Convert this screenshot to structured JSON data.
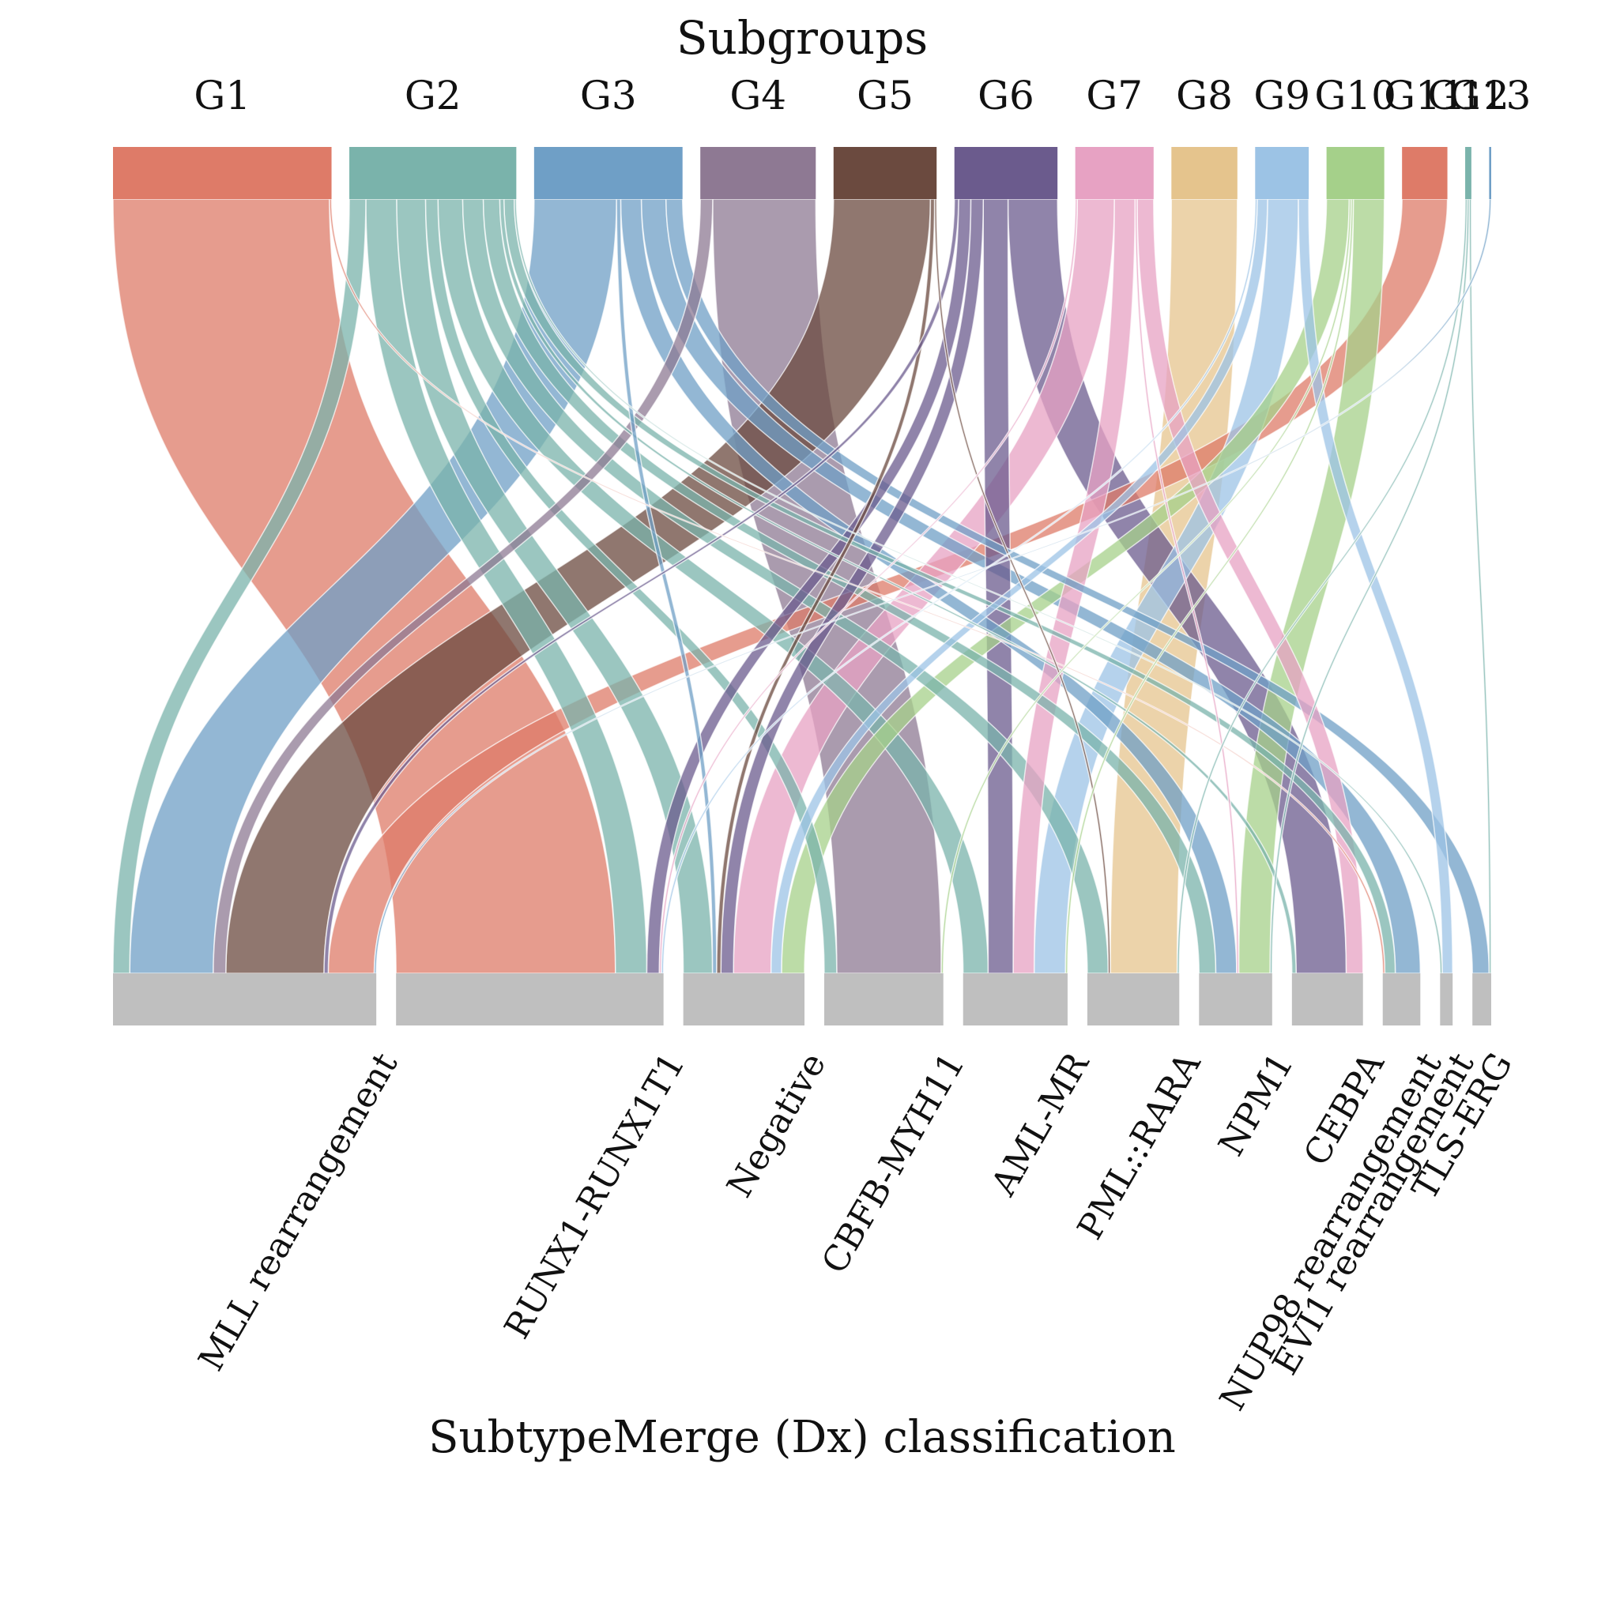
{
  "chart_data": {
    "type": "alluvial",
    "title": "Subgroups",
    "xlabel": "SubtypeMerge (Dx) classification",
    "top_nodes": [
      {
        "name": "G1",
        "color": "#de7b68"
      },
      {
        "name": "G2",
        "color": "#7ab3ab"
      },
      {
        "name": "G3",
        "color": "#6f9fc6"
      },
      {
        "name": "G4",
        "color": "#8e7993"
      },
      {
        "name": "G5",
        "color": "#6b4a3f"
      },
      {
        "name": "G6",
        "color": "#6b5b8d"
      },
      {
        "name": "G7",
        "color": "#e7a2c3"
      },
      {
        "name": "G8",
        "color": "#e5c48d"
      },
      {
        "name": "G9",
        "color": "#9cc3e5"
      },
      {
        "name": "G10",
        "color": "#a5d08a"
      },
      {
        "name": "G11",
        "color": "#de7b68"
      },
      {
        "name": "G12",
        "color": "#7ab3ab"
      },
      {
        "name": "G13",
        "color": "#6f9fc6"
      }
    ],
    "bottom_nodes": [
      "MLL rearrangement",
      "RUNX1-RUNX1T1",
      "Negative",
      "CBFB-MYH11",
      "AML-MR",
      "PML::RARA",
      "NPM1",
      "CEBPA",
      "NUP98 rearrangement",
      "EVI1 rearrangement",
      "TLS-ERG"
    ],
    "bottom_color": "#bfbfbf",
    "flows": [
      {
        "from": "G1",
        "to": "RUNX1-RUNX1T1",
        "value": 105
      },
      {
        "from": "G1",
        "to": "NUP98 rearrangement",
        "value": 1
      },
      {
        "from": "G2",
        "to": "MLL rearrangement",
        "value": 8
      },
      {
        "from": "G2",
        "to": "RUNX1-RUNX1T1",
        "value": 15
      },
      {
        "from": "G2",
        "to": "Negative",
        "value": 14
      },
      {
        "from": "G2",
        "to": "CBFB-MYH11",
        "value": 6
      },
      {
        "from": "G2",
        "to": "AML-MR",
        "value": 12
      },
      {
        "from": "G2",
        "to": "PML::RARA",
        "value": 10
      },
      {
        "from": "G2",
        "to": "NPM1",
        "value": 8
      },
      {
        "from": "G2",
        "to": "CEBPA",
        "value": 2
      },
      {
        "from": "G2",
        "to": "NUP98 rearrangement",
        "value": 5
      },
      {
        "from": "G2",
        "to": "EVI1 rearrangement",
        "value": 1
      },
      {
        "from": "G3",
        "to": "MLL rearrangement",
        "value": 40
      },
      {
        "from": "G3",
        "to": "Negative",
        "value": 2
      },
      {
        "from": "G3",
        "to": "NPM1",
        "value": 10
      },
      {
        "from": "G3",
        "to": "NUP98 rearrangement",
        "value": 12
      },
      {
        "from": "G3",
        "to": "TLS-ERG",
        "value": 8
      },
      {
        "from": "G4",
        "to": "MLL rearrangement",
        "value": 6
      },
      {
        "from": "G4",
        "to": "CBFB-MYH11",
        "value": 50
      },
      {
        "from": "G5",
        "to": "MLL rearrangement",
        "value": 47
      },
      {
        "from": "G5",
        "to": "Negative",
        "value": 2
      },
      {
        "from": "G5",
        "to": "PML::RARA",
        "value": 1
      },
      {
        "from": "G6",
        "to": "MLL rearrangement",
        "value": 2
      },
      {
        "from": "G6",
        "to": "RUNX1-RUNX1T1",
        "value": 6
      },
      {
        "from": "G6",
        "to": "Negative",
        "value": 6
      },
      {
        "from": "G6",
        "to": "AML-MR",
        "value": 12
      },
      {
        "from": "G6",
        "to": "CEBPA",
        "value": 24
      },
      {
        "from": "G7",
        "to": "RUNX1-RUNX1T1",
        "value": 1
      },
      {
        "from": "G7",
        "to": "Negative",
        "value": 18
      },
      {
        "from": "G7",
        "to": "AML-MR",
        "value": 10
      },
      {
        "from": "G7",
        "to": "NPM1",
        "value": 1
      },
      {
        "from": "G7",
        "to": "CEBPA",
        "value": 8
      },
      {
        "from": "G8",
        "to": "PML::RARA",
        "value": 32
      },
      {
        "from": "G9",
        "to": "RUNX1-RUNX1T1",
        "value": 1
      },
      {
        "from": "G9",
        "to": "Negative",
        "value": 5
      },
      {
        "from": "G9",
        "to": "AML-MR",
        "value": 15
      },
      {
        "from": "G9",
        "to": "EVI1 rearrangement",
        "value": 5
      },
      {
        "from": "G10",
        "to": "Negative",
        "value": 11
      },
      {
        "from": "G10",
        "to": "CBFB-MYH11",
        "value": 1
      },
      {
        "from": "G10",
        "to": "AML-MR",
        "value": 1
      },
      {
        "from": "G10",
        "to": "NPM1",
        "value": 15
      },
      {
        "from": "G11",
        "to": "MLL rearrangement",
        "value": 22
      },
      {
        "from": "G12",
        "to": "PML::RARA",
        "value": 1
      },
      {
        "from": "G12",
        "to": "NPM1",
        "value": 1
      },
      {
        "from": "G12",
        "to": "TLS-ERG",
        "value": 1
      },
      {
        "from": "G13",
        "to": "MLL rearrangement",
        "value": 1
      }
    ]
  }
}
